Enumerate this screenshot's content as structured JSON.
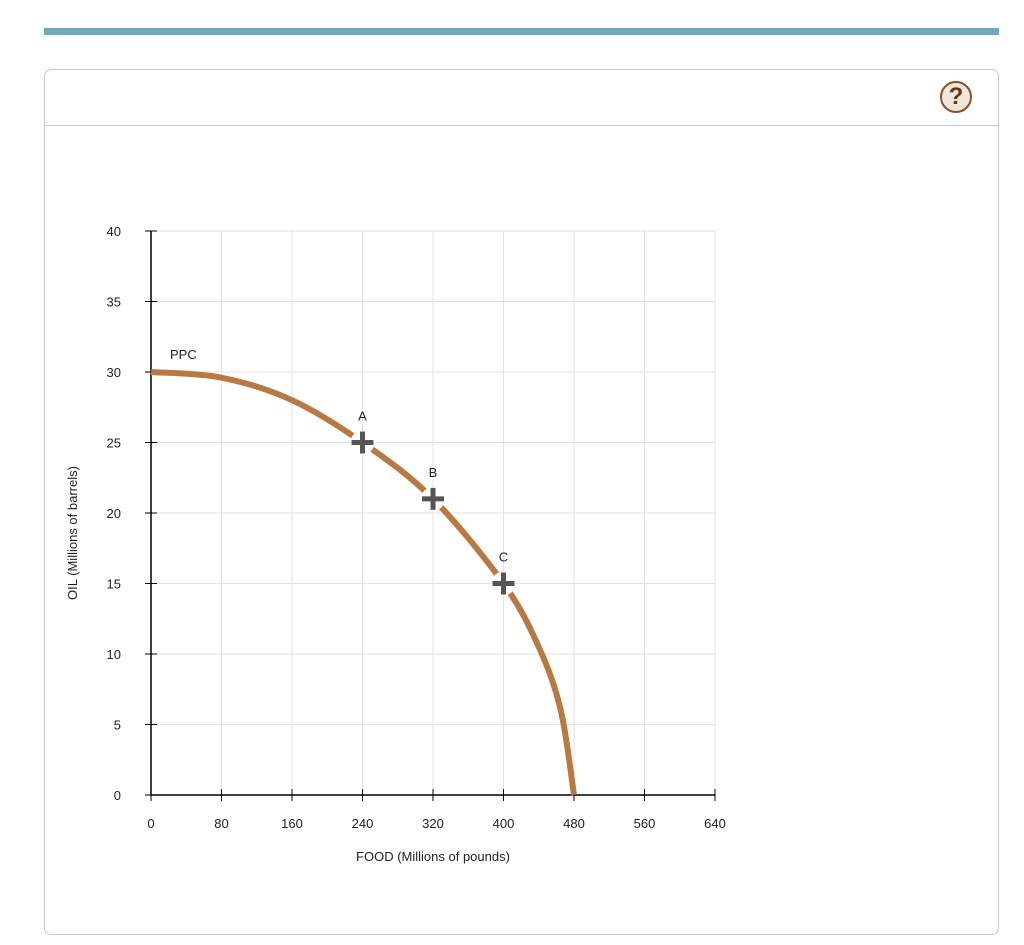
{
  "help_icon": "question-mark-icon",
  "help_label": "?",
  "colors": {
    "curve": "#b87a42",
    "marker": "#555555",
    "accent_bar": "#6fabbd"
  },
  "chart_data": {
    "type": "line",
    "xlabel": "FOOD (Millions of pounds)",
    "ylabel": "OIL (Millions of barrels)",
    "xlim": [
      0,
      640
    ],
    "ylim": [
      0,
      40
    ],
    "xticks": [
      0,
      80,
      160,
      240,
      320,
      400,
      480,
      560,
      640
    ],
    "yticks": [
      0,
      5,
      10,
      15,
      20,
      25,
      30,
      35,
      40
    ],
    "grid": true,
    "series": [
      {
        "name": "PPC",
        "points": [
          [
            0,
            30
          ],
          [
            80,
            29.6
          ],
          [
            160,
            28
          ],
          [
            240,
            25
          ],
          [
            320,
            21
          ],
          [
            400,
            15
          ],
          [
            440,
            10.5
          ],
          [
            465,
            6
          ],
          [
            480,
            0
          ]
        ]
      }
    ],
    "points": [
      {
        "label": "A",
        "x": 240,
        "y": 25
      },
      {
        "label": "B",
        "x": 320,
        "y": 21
      },
      {
        "label": "C",
        "x": 400,
        "y": 15
      }
    ]
  }
}
